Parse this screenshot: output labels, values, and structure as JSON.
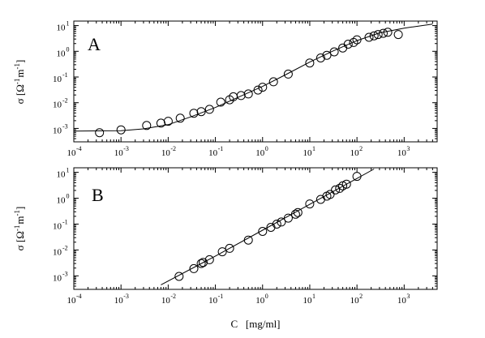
{
  "chart_data": [
    {
      "panel": "A",
      "type": "scatter",
      "xscale": "log",
      "yscale": "log",
      "xlim": [
        0.0001,
        5000
      ],
      "ylim": [
        0.0003,
        15
      ],
      "xtick_exponents": [
        -4,
        -3,
        -2,
        -1,
        0,
        1,
        2,
        3
      ],
      "ytick_exponents": [
        -3,
        -2,
        -1,
        0,
        1
      ],
      "ylabel": {
        "symbol": "σ",
        "open": "[Ω",
        "sup1": "-1",
        "mid": "m",
        "sup2": "-1",
        "close": "]"
      },
      "marker": "open-circle",
      "points": [
        [
          0.00035,
          0.00068
        ],
        [
          0.001,
          0.00088
        ],
        [
          0.0035,
          0.0013
        ],
        [
          0.007,
          0.0016
        ],
        [
          0.01,
          0.0019
        ],
        [
          0.018,
          0.0025
        ],
        [
          0.035,
          0.0039
        ],
        [
          0.05,
          0.0045
        ],
        [
          0.075,
          0.0055
        ],
        [
          0.13,
          0.0105
        ],
        [
          0.2,
          0.013
        ],
        [
          0.24,
          0.017
        ],
        [
          0.35,
          0.019
        ],
        [
          0.5,
          0.022
        ],
        [
          0.8,
          0.031
        ],
        [
          1.0,
          0.04
        ],
        [
          1.7,
          0.065
        ],
        [
          3.5,
          0.13
        ],
        [
          10,
          0.35
        ],
        [
          17,
          0.55
        ],
        [
          23,
          0.7
        ],
        [
          33,
          0.95
        ],
        [
          50,
          1.35
        ],
        [
          65,
          1.9
        ],
        [
          85,
          2.2
        ],
        [
          100,
          2.8
        ],
        [
          180,
          3.5
        ],
        [
          230,
          4.0
        ],
        [
          280,
          4.5
        ],
        [
          360,
          5.0
        ],
        [
          450,
          5.5
        ],
        [
          750,
          4.5
        ]
      ],
      "fit_line": [
        [
          0.0001,
          0.00078
        ],
        [
          0.001,
          0.00082
        ],
        [
          0.003,
          0.00096
        ],
        [
          0.01,
          0.0014
        ],
        [
          0.03,
          0.0028
        ],
        [
          0.1,
          0.0065
        ],
        [
          0.3,
          0.016
        ],
        [
          1,
          0.043
        ],
        [
          3,
          0.12
        ],
        [
          10,
          0.38
        ],
        [
          30,
          1.0
        ],
        [
          100,
          2.6
        ],
        [
          300,
          5.2
        ],
        [
          1000,
          8.0
        ],
        [
          4000,
          11.5
        ]
      ]
    },
    {
      "panel": "B",
      "type": "scatter",
      "xscale": "log",
      "yscale": "log",
      "xlim": [
        0.0001,
        5000
      ],
      "ylim": [
        0.0003,
        15
      ],
      "xtick_exponents": [
        -4,
        -3,
        -2,
        -1,
        0,
        1,
        2,
        3
      ],
      "ytick_exponents": [
        -3,
        -2,
        -1,
        0,
        1
      ],
      "ylabel": {
        "symbol": "σ",
        "open": "[Ω",
        "sup1": "-1",
        "mid": "m",
        "sup2": "-1",
        "close": "]"
      },
      "xlabel": "C   [mg/ml]",
      "marker": "open-circle",
      "points": [
        [
          0.017,
          0.00095
        ],
        [
          0.035,
          0.0019
        ],
        [
          0.05,
          0.003
        ],
        [
          0.055,
          0.0033
        ],
        [
          0.075,
          0.0042
        ],
        [
          0.14,
          0.0085
        ],
        [
          0.2,
          0.0115
        ],
        [
          0.5,
          0.024
        ],
        [
          1.0,
          0.052
        ],
        [
          1.5,
          0.075
        ],
        [
          2.0,
          0.1
        ],
        [
          2.5,
          0.12
        ],
        [
          3.5,
          0.17
        ],
        [
          5.0,
          0.24
        ],
        [
          5.6,
          0.28
        ],
        [
          10,
          0.6
        ],
        [
          17,
          0.9
        ],
        [
          23,
          1.2
        ],
        [
          27,
          1.4
        ],
        [
          35,
          2.1
        ],
        [
          43,
          2.4
        ],
        [
          50,
          3.0
        ],
        [
          60,
          3.5
        ],
        [
          100,
          7.0
        ]
      ],
      "fit_line": [
        [
          0.007,
          0.00045
        ],
        [
          0.1,
          0.0058
        ],
        [
          1,
          0.058
        ],
        [
          10,
          0.58
        ],
        [
          100,
          5.8
        ],
        [
          230,
          13.5
        ]
      ]
    }
  ]
}
